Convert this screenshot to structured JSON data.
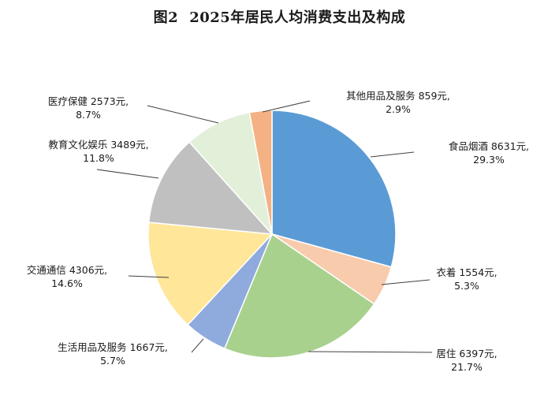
{
  "figure": {
    "number": "图2",
    "title": "2025年居民人均消费支出及构成"
  },
  "chart_data": {
    "type": "pie",
    "title": "2025年居民人均消费支出及构成",
    "start_angle_deg": 0,
    "direction": "clockwise",
    "slices": [
      {
        "name": "食品烟酒",
        "value": 8631,
        "unit": "元",
        "percent": "29.3%",
        "color": "#5b9bd5"
      },
      {
        "name": "衣着",
        "value": 1554,
        "unit": "元",
        "percent": "5.3%",
        "color": "#f8cbad"
      },
      {
        "name": "居住",
        "value": 6397,
        "unit": "元",
        "percent": "21.7%",
        "color": "#a9d18e"
      },
      {
        "name": "生活用品及服务",
        "value": 1667,
        "unit": "元",
        "percent": "5.7%",
        "color": "#8faadc"
      },
      {
        "name": "交通通信",
        "value": 4306,
        "unit": "元",
        "percent": "14.6%",
        "color": "#ffe699"
      },
      {
        "name": "教育文化娱乐",
        "value": 3489,
        "unit": "元",
        "percent": "11.8%",
        "color": "#c0c0c0"
      },
      {
        "name": "医疗保健",
        "value": 2573,
        "unit": "元",
        "percent": "8.7%",
        "color": "#e2f0d9"
      },
      {
        "name": "其他用品及服务",
        "value": 859,
        "unit": "元",
        "percent": "2.9%",
        "color": "#f4b183"
      }
    ]
  }
}
